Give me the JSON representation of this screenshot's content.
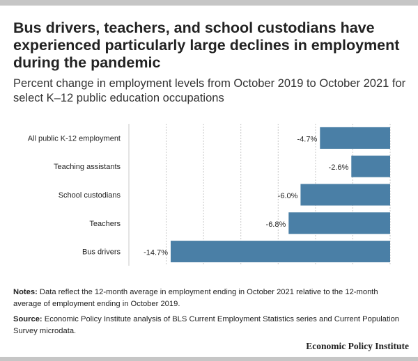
{
  "title": "Bus drivers, teachers, and school custodians have experienced particularly large declines in employment during the pandemic",
  "subtitle": "Percent change in employment levels from October 2019 to October 2021 for select K–12 public education occupations",
  "notes": {
    "notes_label": "Notes:",
    "notes_text": "Data reflect the 12-month average in employment ending in October 2021 relative to the 12-month average of employment ending in October 2019.",
    "source_label": "Source:",
    "source_text": "Economic Policy Institute analysis of BLS Current Employment Statistics series and Current Population Survey microdata."
  },
  "brand": "Economic Policy Institute",
  "colors": {
    "bar": "#4a7fa6",
    "grid": "#c8c8c8",
    "band": "#c6c6c6"
  },
  "chart_data": {
    "type": "bar",
    "orientation": "horizontal",
    "categories": [
      "All public K-12 employment",
      "Teaching assistants",
      "School custodians",
      "Teachers",
      "Bus drivers"
    ],
    "values": [
      -4.7,
      -2.6,
      -6.0,
      -6.8,
      -14.7
    ],
    "value_labels": [
      "-4.7%",
      "-2.6%",
      "-6.0%",
      "-6.8%",
      "-14.7%"
    ],
    "xlim": [
      -17.5,
      0
    ],
    "grid": true
  }
}
